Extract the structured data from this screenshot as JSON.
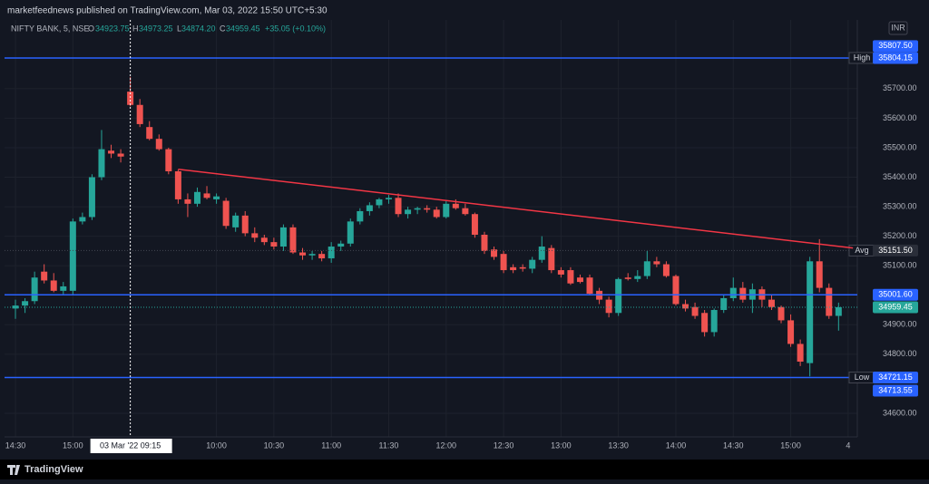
{
  "header": {
    "publisher": "marketfeednews published on TradingView.com, Mar 03, 2022 15:50 UTC+5:30",
    "brand": "TradingView"
  },
  "chart_data": {
    "type": "candlestick",
    "symbol": "NIFTY BANK, 5, NSE",
    "legend": {
      "o_label": "O",
      "o": "34923.75",
      "h_label": "H",
      "h": "34973.25",
      "l_label": "L",
      "l": "34874.20",
      "c_label": "C",
      "c": "34959.45",
      "change": "+35.05 (+0.10%)"
    },
    "currency": "INR",
    "up_color": "#26a69a",
    "down_color": "#ef5350",
    "open": [
      34955,
      34965,
      34980,
      35080,
      35050,
      35015,
      35015,
      35250,
      35265,
      35400,
      35490,
      35480,
      35690,
      35645,
      35570,
      35530,
      35495,
      35420,
      35325,
      35310,
      35345,
      35325,
      35320,
      35230,
      35270,
      35210,
      35195,
      35180,
      35165,
      35230,
      35145,
      35135,
      35140,
      35125,
      35165,
      35175,
      35250,
      35285,
      35305,
      35325,
      35330,
      35275,
      35290,
      35295,
      35290,
      35265,
      35310,
      35295,
      35275,
      35205,
      35155,
      35140,
      35095,
      35095,
      35090,
      35120,
      35160,
      35085,
      35085,
      35060,
      35060,
      35015,
      34985,
      34940,
      35060,
      35055,
      35065,
      35115,
      35105,
      35065,
      34970,
      34960,
      34940,
      34875,
      34950,
      34990,
      35025,
      34985,
      35020,
      34985,
      34960,
      34915,
      34835,
      34770,
      35115,
      35025,
      34930
    ],
    "high": [
      34985,
      34990,
      35080,
      35105,
      35075,
      35045,
      35260,
      35280,
      35410,
      35560,
      35510,
      35495,
      35740,
      35665,
      35590,
      35545,
      35500,
      35425,
      35345,
      35365,
      35370,
      35345,
      35330,
      35280,
      35285,
      35230,
      35205,
      35195,
      35240,
      35240,
      35160,
      35150,
      35150,
      35180,
      35185,
      35260,
      35295,
      35315,
      35330,
      35340,
      35345,
      35300,
      35300,
      35305,
      35300,
      35320,
      35325,
      35310,
      35280,
      35215,
      35165,
      35150,
      35105,
      35105,
      35130,
      35200,
      35170,
      35095,
      35095,
      35070,
      35070,
      35025,
      34995,
      35060,
      35075,
      35085,
      35150,
      35130,
      35115,
      35070,
      34985,
      34975,
      34950,
      34955,
      35000,
      35060,
      35045,
      35040,
      35030,
      35000,
      34965,
      34935,
      34850,
      35130,
      35190,
      35040,
      34975
    ],
    "low": [
      34920,
      34940,
      34970,
      35040,
      35010,
      35000,
      35000,
      35240,
      35255,
      35390,
      35465,
      35450,
      35640,
      35570,
      35525,
      35490,
      35410,
      35310,
      35265,
      35300,
      35325,
      35310,
      35225,
      35215,
      35200,
      35180,
      35170,
      35155,
      35150,
      35140,
      35120,
      35120,
      35115,
      35110,
      35150,
      35165,
      35240,
      35270,
      35295,
      35310,
      35265,
      35260,
      35275,
      35280,
      35260,
      35260,
      35290,
      35270,
      35195,
      35140,
      35120,
      35075,
      35075,
      35080,
      35075,
      35110,
      35075,
      35060,
      35035,
      35040,
      35000,
      34970,
      34925,
      34930,
      35050,
      35045,
      35055,
      35095,
      35060,
      34965,
      34945,
      34920,
      34860,
      34860,
      34940,
      34980,
      34975,
      34940,
      34960,
      34950,
      34905,
      34825,
      34760,
      34725,
      35010,
      34920,
      34880
    ],
    "close": [
      34965,
      34980,
      35060,
      35050,
      35015,
      35030,
      35250,
      35265,
      35400,
      35495,
      35480,
      35470,
      35645,
      35580,
      35530,
      35495,
      35420,
      35325,
      35310,
      35350,
      35330,
      35335,
      35235,
      35270,
      35210,
      35195,
      35180,
      35165,
      35230,
      35145,
      35135,
      35140,
      35125,
      35165,
      35175,
      35250,
      35285,
      35305,
      35325,
      35330,
      35275,
      35290,
      35295,
      35290,
      35265,
      35310,
      35295,
      35275,
      35205,
      35150,
      35130,
      35085,
      35085,
      35090,
      35120,
      35165,
      35085,
      35070,
      35040,
      35045,
      35005,
      34985,
      34940,
      35055,
      35055,
      35065,
      35115,
      35105,
      35065,
      34970,
      34955,
      34930,
      34875,
      34950,
      34990,
      35025,
      34985,
      35020,
      34985,
      34960,
      34915,
      34835,
      34775,
      35115,
      35025,
      34930,
      34959.45
    ],
    "xlim": [
      -1.14,
      87.96
    ],
    "xticks": [
      {
        "value": 0,
        "label": "14:30"
      },
      {
        "value": 6,
        "label": "15:00"
      },
      {
        "value": 21,
        "label": "10:00"
      },
      {
        "value": 27,
        "label": "10:30"
      },
      {
        "value": 33,
        "label": "11:00"
      },
      {
        "value": 39,
        "label": "11:30"
      },
      {
        "value": 45,
        "label": "12:00"
      },
      {
        "value": 51,
        "label": "12:30"
      },
      {
        "value": 57,
        "label": "13:00"
      },
      {
        "value": 63,
        "label": "13:30"
      },
      {
        "value": 69,
        "label": "14:00"
      },
      {
        "value": 75,
        "label": "14:30"
      },
      {
        "value": 81,
        "label": "15:00"
      },
      {
        "value": 87,
        "label": "4"
      }
    ],
    "crosshair": {
      "x": 12,
      "label": "03 Mar '22   09:15"
    },
    "ylim": [
      34520,
      35933
    ],
    "yticks": [
      {
        "value": 34600,
        "label": "34600.00"
      },
      {
        "value": 34800,
        "label": "34800.00"
      },
      {
        "value": 34900,
        "label": "34900.00"
      },
      {
        "value": 35100,
        "label": "35100.00"
      },
      {
        "value": 35200,
        "label": "35200.00"
      },
      {
        "value": 35300,
        "label": "35300.00"
      },
      {
        "value": 35400,
        "label": "35400.00"
      },
      {
        "value": 35500,
        "label": "35500.00"
      },
      {
        "value": 35600,
        "label": "35600.00"
      },
      {
        "value": 35700,
        "label": "35700.00"
      }
    ],
    "grid": true,
    "levels": [
      {
        "name": "High",
        "value": {
          "value": 35804.15,
          "label": "35804.15"
        },
        "color": "#2962ff",
        "style": "solid"
      },
      {
        "name": "Low",
        "value": {
          "value": 34721.15,
          "label": "34721.15"
        },
        "color": "#2962ff",
        "style": "solid"
      },
      {
        "name": "Avg",
        "value": {
          "value": 35151.5,
          "label": "35151.50"
        },
        "color": "#434651",
        "style": "dotted"
      },
      {
        "value": {
          "value": 35001.6,
          "label": "35001.60"
        },
        "color": "#2962ff",
        "style": "solid"
      },
      {
        "value": {
          "value": 34959.45,
          "label": "34959.45"
        },
        "color": "#26a69a",
        "style": "dotted"
      }
    ],
    "price_tags": [
      {
        "value": 35807.5,
        "label": "35807.50",
        "color": "#2962ff"
      },
      {
        "value": 34713.55,
        "label": "34713.55",
        "color": "#2962ff"
      }
    ],
    "trend_line": {
      "x": [
        17,
        87.5
      ],
      "y": [
        35427,
        35160
      ],
      "color": "#f23645"
    }
  }
}
